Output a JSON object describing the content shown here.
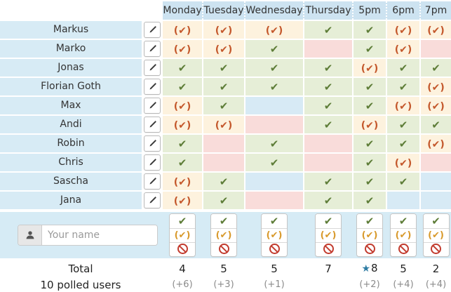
{
  "poll": {
    "columns": [
      "Monday",
      "Tuesday",
      "Wednesday",
      "Thursday",
      "5pm",
      "6pm",
      "7pm"
    ],
    "users": [
      {
        "name": "Markus",
        "votes": [
          "maybe",
          "maybe",
          "maybe",
          "yes",
          "yes",
          "maybe",
          "maybe"
        ]
      },
      {
        "name": "Marko",
        "votes": [
          "maybe",
          "maybe",
          "yes",
          "no",
          "yes",
          "maybe",
          "no"
        ]
      },
      {
        "name": "Jonas",
        "votes": [
          "yes",
          "yes",
          "yes",
          "yes",
          "maybe",
          "yes",
          "yes"
        ]
      },
      {
        "name": "Florian Goth",
        "votes": [
          "yes",
          "yes",
          "yes",
          "yes",
          "yes",
          "yes",
          "maybe"
        ]
      },
      {
        "name": "Max",
        "votes": [
          "maybe",
          "yes",
          "none",
          "yes",
          "yes",
          "maybe",
          "maybe"
        ]
      },
      {
        "name": "Andi",
        "votes": [
          "maybe",
          "maybe",
          "no",
          "yes",
          "maybe",
          "yes",
          "yes"
        ]
      },
      {
        "name": "Robin",
        "votes": [
          "yes",
          "no",
          "yes",
          "no",
          "yes",
          "yes",
          "maybe"
        ]
      },
      {
        "name": "Chris",
        "votes": [
          "yes",
          "no",
          "yes",
          "no",
          "yes",
          "maybe",
          "no"
        ]
      },
      {
        "name": "Sascha",
        "votes": [
          "maybe",
          "yes",
          "none",
          "yes",
          "yes",
          "yes",
          "none"
        ]
      },
      {
        "name": "Jana",
        "votes": [
          "maybe",
          "yes",
          "no",
          "yes",
          "yes",
          "none",
          "none"
        ]
      }
    ]
  },
  "glyphs": {
    "yes": "✔",
    "maybe": "(✔)",
    "star": "★"
  },
  "entry": {
    "name_placeholder": "Your name",
    "vote_options": [
      "yes",
      "maybe",
      "no"
    ]
  },
  "totals": {
    "label": "Total",
    "polled_label": "10 polled users",
    "columns": [
      {
        "count": "4",
        "extra": "(+6)",
        "starred": false
      },
      {
        "count": "5",
        "extra": "(+3)",
        "starred": false
      },
      {
        "count": "5",
        "extra": "(+1)",
        "starred": false
      },
      {
        "count": "7",
        "extra": "",
        "starred": false
      },
      {
        "count": "8",
        "extra": "(+2)",
        "starred": true
      },
      {
        "count": "5",
        "extra": "(+4)",
        "starred": false
      },
      {
        "count": "2",
        "extra": "(+4)",
        "starred": false
      }
    ]
  },
  "icons": {
    "edit": "pencil-icon",
    "user": "user-icon",
    "yes": "check-icon",
    "maybe": "paren-check-icon",
    "no": "no-entry-icon",
    "best": "star-icon"
  },
  "colors": {
    "header_blue": "#cde3f1",
    "panel_blue": "#d6ebf5",
    "cell_none_blue": "#d7eaf5",
    "cell_yes_green": "#e6eed7",
    "cell_maybe_cream": "#fdf2de",
    "cell_no_pink": "#f9dcda",
    "check_green": "#5e7d38",
    "maybe_orange": "#c4582c",
    "maybe_amber": "#d8992b",
    "no_red": "#c23b2e",
    "star_blue": "#2e7ca3"
  }
}
